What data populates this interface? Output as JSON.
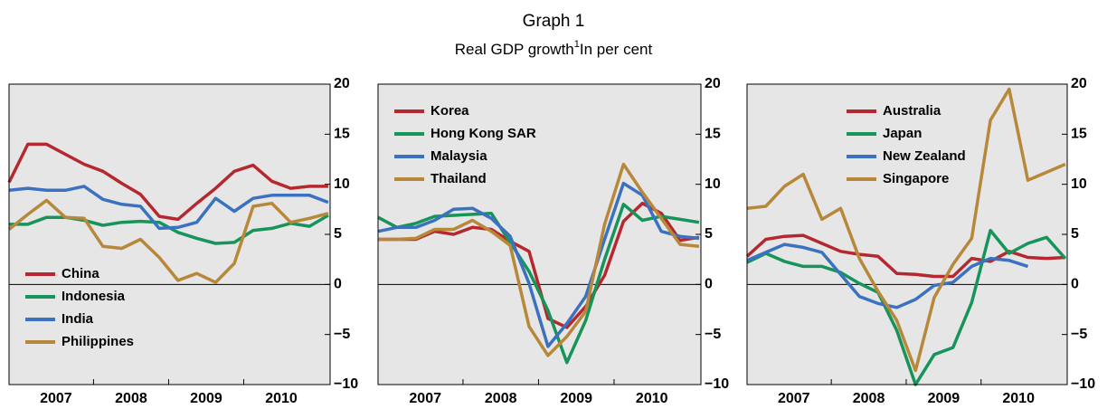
{
  "header": {
    "title": "Graph 1",
    "subtitle": "Real GDP growth",
    "footnote_mark": "1",
    "subtitle_note": "In per cent"
  },
  "chart_data": [
    {
      "type": "line",
      "legend": "lower left",
      "x": [
        2006.875,
        2007.125,
        2007.375,
        2007.625,
        2007.875,
        2008.125,
        2008.375,
        2008.625,
        2008.875,
        2009.125,
        2009.375,
        2009.625,
        2009.875,
        2010.125,
        2010.375,
        2010.625,
        2010.875,
        2011.125
      ],
      "xlim": [
        2006.875,
        2011.15
      ],
      "xticks": [
        {
          "value": 2007.5,
          "label": "2007"
        },
        {
          "value": 2008.5,
          "label": "2008"
        },
        {
          "value": 2009.5,
          "label": "2009"
        },
        {
          "value": 2010.5,
          "label": "2010"
        }
      ],
      "xminor": [
        2008,
        2009,
        2010
      ],
      "ylim": [
        -10,
        20
      ],
      "yticks": [
        {
          "value": -10,
          "label": "−10"
        },
        {
          "value": -5,
          "label": "−5"
        },
        0,
        5,
        10,
        15,
        20
      ],
      "series": [
        {
          "name": "China",
          "color": "#b5282f",
          "values": [
            10.2,
            14.0,
            14.0,
            13.0,
            12.0,
            11.3,
            10.1,
            9.0,
            6.8,
            6.5,
            8.1,
            9.6,
            11.3,
            11.9,
            10.3,
            9.6,
            9.8,
            9.8
          ]
        },
        {
          "name": "Indonesia",
          "color": "#17945a",
          "values": [
            6.0,
            6.0,
            6.7,
            6.7,
            6.4,
            5.9,
            6.2,
            6.3,
            6.2,
            5.2,
            4.6,
            4.1,
            4.2,
            5.4,
            5.6,
            6.1,
            5.8,
            6.9
          ]
        },
        {
          "name": "India",
          "color": "#3a72c0",
          "values": [
            9.4,
            9.6,
            9.4,
            9.4,
            9.8,
            8.5,
            8.0,
            7.8,
            5.6,
            5.7,
            6.2,
            8.6,
            7.3,
            8.6,
            8.9,
            8.9,
            8.9,
            8.2
          ]
        },
        {
          "name": "Philippines",
          "color": "#b8883a",
          "values": [
            5.5,
            7.0,
            8.4,
            6.7,
            6.6,
            3.8,
            3.6,
            4.5,
            2.7,
            0.4,
            1.1,
            0.2,
            2.1,
            7.8,
            8.1,
            6.2,
            6.6,
            7.1
          ]
        }
      ]
    },
    {
      "type": "line",
      "legend": "upper left",
      "x": [
        2006.875,
        2007.125,
        2007.375,
        2007.625,
        2007.875,
        2008.125,
        2008.375,
        2008.625,
        2008.875,
        2009.125,
        2009.375,
        2009.625,
        2009.875,
        2010.125,
        2010.375,
        2010.625,
        2010.875,
        2011.125
      ],
      "xlim": [
        2006.875,
        2011.15
      ],
      "xticks": [
        {
          "value": 2007.5,
          "label": "2007"
        },
        {
          "value": 2008.5,
          "label": "2008"
        },
        {
          "value": 2009.5,
          "label": "2009"
        },
        {
          "value": 2010.5,
          "label": "2010"
        }
      ],
      "xminor": [
        2008,
        2009,
        2010
      ],
      "ylim": [
        -10,
        20
      ],
      "yticks": [
        {
          "value": -10,
          "label": "−10"
        },
        {
          "value": -5,
          "label": "−5"
        },
        0,
        5,
        10,
        15,
        20
      ],
      "series": [
        {
          "name": "Korea",
          "color": "#b5282f",
          "values": [
            4.5,
            4.5,
            4.5,
            5.3,
            5.0,
            5.7,
            5.5,
            4.3,
            3.3,
            -3.4,
            -4.3,
            -2.2,
            0.9,
            6.3,
            8.1,
            7.1,
            4.4,
            4.7
          ]
        },
        {
          "name": "Hong Kong SAR",
          "color": "#17945a",
          "values": [
            6.7,
            5.7,
            6.1,
            6.8,
            6.9,
            7.0,
            7.1,
            4.2,
            1.3,
            -2.6,
            -7.8,
            -3.6,
            2.5,
            8.0,
            6.4,
            6.8,
            6.5,
            6.2
          ]
        },
        {
          "name": "Malaysia",
          "color": "#3a72c0",
          "values": [
            5.3,
            5.7,
            5.7,
            6.4,
            7.5,
            7.6,
            6.6,
            4.8,
            0.1,
            -6.2,
            -3.9,
            -1.2,
            4.5,
            10.1,
            8.9,
            5.3,
            4.8,
            4.6
          ]
        },
        {
          "name": "Thailand",
          "color": "#b8883a",
          "values": [
            4.5,
            4.5,
            4.6,
            5.5,
            5.5,
            6.4,
            5.3,
            3.9,
            -4.2,
            -7.1,
            -5.2,
            -2.7,
            6.0,
            12.0,
            9.2,
            6.6,
            4.0,
            3.8
          ]
        }
      ]
    },
    {
      "type": "line",
      "legend": "upper center",
      "x": [
        2006.875,
        2007.125,
        2007.375,
        2007.625,
        2007.875,
        2008.125,
        2008.375,
        2008.625,
        2008.875,
        2009.125,
        2009.375,
        2009.625,
        2009.875,
        2010.125,
        2010.375,
        2010.625,
        2010.875,
        2011.125
      ],
      "xlim": [
        2006.875,
        2011.15
      ],
      "xticks": [
        {
          "value": 2007.5,
          "label": "2007"
        },
        {
          "value": 2008.5,
          "label": "2008"
        },
        {
          "value": 2009.5,
          "label": "2009"
        },
        {
          "value": 2010.5,
          "label": "2010"
        }
      ],
      "xminor": [
        2008,
        2009,
        2010
      ],
      "ylim": [
        -10,
        20
      ],
      "yticks": [
        {
          "value": -10,
          "label": "−10"
        },
        {
          "value": -5,
          "label": "−5"
        },
        0,
        5,
        10,
        15,
        20
      ],
      "series": [
        {
          "name": "Australia",
          "color": "#b5282f",
          "values": [
            2.8,
            4.5,
            4.8,
            4.9,
            4.1,
            3.3,
            3.0,
            2.8,
            1.1,
            1.0,
            0.8,
            0.8,
            2.6,
            2.3,
            3.3,
            2.7,
            2.6,
            2.7
          ]
        },
        {
          "name": "Japan",
          "color": "#17945a",
          "values": [
            2.2,
            3.1,
            2.3,
            1.8,
            1.8,
            1.2,
            0.1,
            -0.8,
            -4.6,
            -10.0,
            -7.0,
            -6.3,
            -1.8,
            5.4,
            3.1,
            4.1,
            4.7,
            2.6
          ]
        },
        {
          "name": "New Zealand",
          "color": "#3a72c0",
          "values": [
            2.4,
            3.2,
            4.0,
            3.7,
            3.2,
            1.0,
            -1.2,
            -1.9,
            -2.3,
            -1.5,
            -0.1,
            0.2,
            1.8,
            2.6,
            2.4,
            1.8,
            null,
            null
          ]
        },
        {
          "name": "Singapore",
          "color": "#b8883a",
          "values": [
            7.6,
            7.8,
            9.8,
            11.0,
            6.5,
            7.6,
            2.6,
            -0.7,
            -3.6,
            -8.6,
            -1.3,
            2.0,
            4.6,
            16.4,
            19.5,
            10.4,
            11.2,
            12.0
          ]
        }
      ]
    }
  ]
}
